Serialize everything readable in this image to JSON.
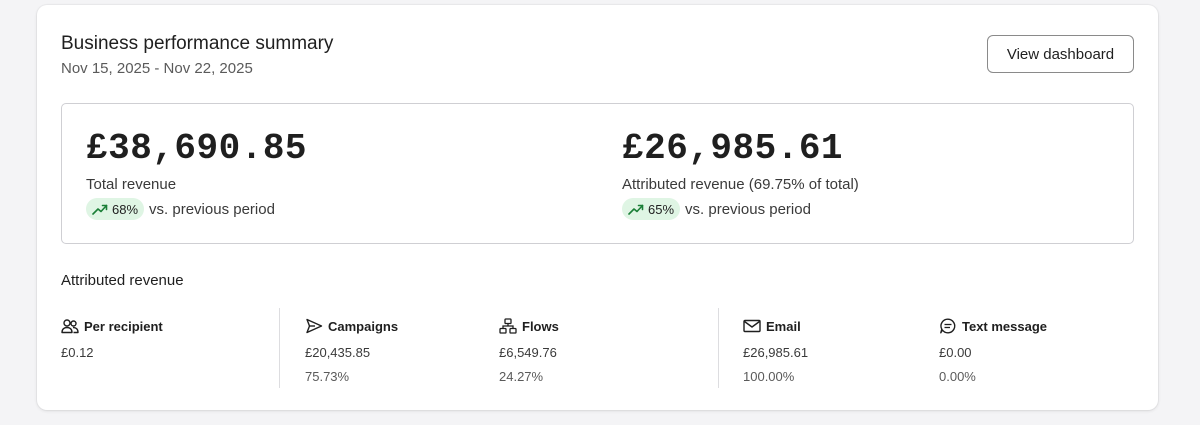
{
  "header": {
    "title": "Business performance summary",
    "date_range": "Nov 15, 2025 - Nov 22, 2025",
    "view_dashboard_label": "View dashboard"
  },
  "metrics": [
    {
      "value": "£38,690.85",
      "label": "Total revenue",
      "change": "68%",
      "change_direction": "up",
      "comparison": "vs. previous period"
    },
    {
      "value": "£26,985.61",
      "label": "Attributed revenue (69.75% of total)",
      "change": "65%",
      "change_direction": "up",
      "comparison": "vs. previous period"
    }
  ],
  "attributed": {
    "title": "Attributed revenue",
    "per_recipient": {
      "label": "Per recipient",
      "icon": "people-icon",
      "value": "£0.12"
    },
    "campaigns": {
      "label": "Campaigns",
      "icon": "send-icon",
      "value": "£20,435.85",
      "percent": "75.73%"
    },
    "flows": {
      "label": "Flows",
      "icon": "flow-icon",
      "value": "£6,549.76",
      "percent": "24.27%"
    },
    "email": {
      "label": "Email",
      "icon": "mail-icon",
      "value": "£26,985.61",
      "percent": "100.00%"
    },
    "text_message": {
      "label": "Text message",
      "icon": "message-icon",
      "value": "£0.00",
      "percent": "0.00%"
    }
  },
  "colors": {
    "badge_bg": "#dff5e4",
    "badge_icon": "#1a7f37",
    "border": "#cfcfd3"
  }
}
